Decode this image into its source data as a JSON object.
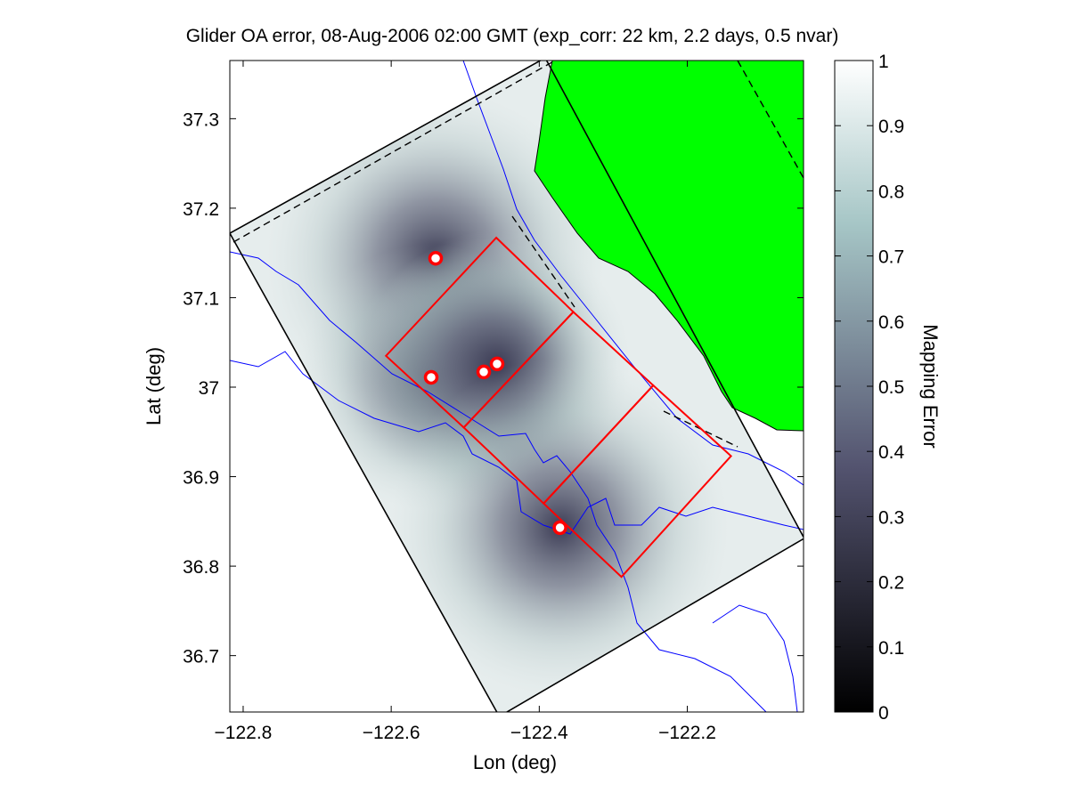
{
  "chart_data": {
    "type": "heatmap",
    "title": "Glider OA error, 08-Aug-2006 02:00 GMT (exp_corr: 22 km, 2.2 days, 0.5 nvar)",
    "xlabel": "Lon (deg)",
    "ylabel": "Lat (deg)",
    "xlim": [
      -122.818,
      -122.043
    ],
    "ylim": [
      36.637,
      37.365
    ],
    "xticks": [
      -122.8,
      -122.6,
      -122.4,
      -122.2
    ],
    "xtick_labels": [
      "−122.8",
      "−122.6",
      "−122.4",
      "−122.2"
    ],
    "yticks": [
      37.3,
      37.2,
      37.1,
      37.0,
      36.9,
      36.8,
      36.7
    ],
    "ytick_labels": [
      "37.3",
      "37.2",
      "37.1",
      "37",
      "36.9",
      "36.8",
      "36.7"
    ],
    "colorbar": {
      "label": "Mapping Error",
      "range": [
        0,
        1
      ],
      "colormap": "bone",
      "ticks": [
        0,
        0.1,
        0.2,
        0.3,
        0.4,
        0.5,
        0.6,
        0.7,
        0.8,
        0.9,
        1
      ],
      "tick_labels": [
        "0",
        "0.1",
        "0.2",
        "0.3",
        "0.4",
        "0.5",
        "0.6",
        "0.7",
        "0.8",
        "0.9",
        "1"
      ]
    },
    "glider_positions": [
      {
        "lon": -122.54,
        "lat": 37.144
      },
      {
        "lon": -122.546,
        "lat": 37.011
      },
      {
        "lon": -122.475,
        "lat": 37.017
      },
      {
        "lon": -122.457,
        "lat": 37.026
      },
      {
        "lon": -122.372,
        "lat": 36.843
      }
    ],
    "domain_boundary": [
      [
        -122.818,
        37.172
      ],
      [
        -122.392,
        37.368
      ],
      [
        -122.042,
        36.831
      ],
      [
        -122.454,
        36.632
      ]
    ],
    "boxes": [
      [
        [
          -122.607,
          37.035
        ],
        [
          -122.458,
          37.167
        ],
        [
          -122.354,
          37.084
        ],
        [
          -122.502,
          36.955
        ]
      ],
      [
        [
          -122.502,
          36.955
        ],
        [
          -122.354,
          37.084
        ],
        [
          -122.246,
          37.002
        ],
        [
          -122.394,
          36.87
        ]
      ],
      [
        [
          -122.394,
          36.87
        ],
        [
          -122.246,
          37.002
        ],
        [
          -122.141,
          36.923
        ],
        [
          -122.289,
          36.788
        ]
      ]
    ],
    "colors": {
      "land": "#00ff00",
      "coastline": "#0000ff",
      "boxes": "#ff0000",
      "boundary": "#000000"
    }
  }
}
